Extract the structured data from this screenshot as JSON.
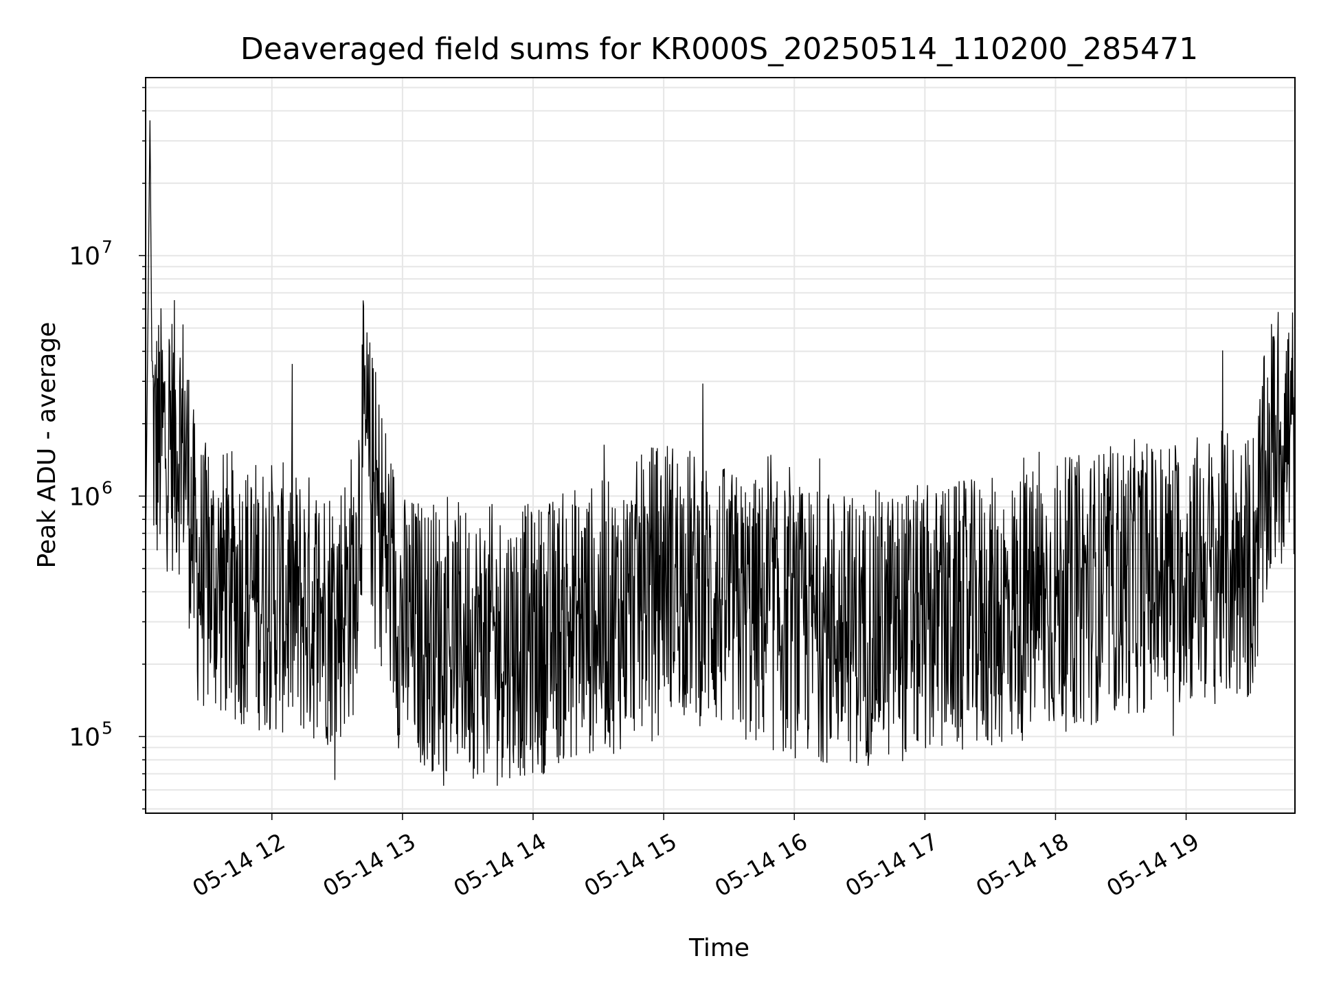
{
  "chart_data": {
    "type": "line",
    "title": "Deaveraged field sums for KR000S_20250514_110200_285471",
    "xlabel": "Time",
    "ylabel": "Peak ADU - average",
    "yscale": "log",
    "ylim": [
      48000,
      55000000
    ],
    "xlim": [
      "2025-05-14 11:02",
      "2025-05-14 19:50"
    ],
    "grid": true,
    "line_color": "#000000",
    "x_ticks": [
      "05-14 12",
      "05-14 13",
      "05-14 14",
      "05-14 15",
      "05-14 16",
      "05-14 17",
      "05-14 18",
      "05-14 19"
    ],
    "y_ticks": [
      {
        "base": "10",
        "exp": "5",
        "value": 100000
      },
      {
        "base": "10",
        "exp": "6",
        "value": 1000000
      },
      {
        "base": "10",
        "exp": "7",
        "value": 10000000
      }
    ],
    "series": [
      {
        "x": [
          "2025-05-14 11:02",
          "2025-05-14 11:04",
          "2025-05-14 11:05",
          "2025-05-14 11:06",
          "2025-05-14 11:08",
          "2025-05-14 11:12",
          "2025-05-14 11:20",
          "2025-05-14 11:25",
          "2025-05-14 11:30",
          "2025-05-14 11:40",
          "2025-05-14 11:50",
          "2025-05-14 12:00",
          "2025-05-14 12:15",
          "2025-05-14 12:30",
          "2025-05-14 12:38",
          "2025-05-14 12:42",
          "2025-05-14 12:48",
          "2025-05-14 13:00",
          "2025-05-14 13:30",
          "2025-05-14 14:00",
          "2025-05-14 14:20",
          "2025-05-14 14:40",
          "2025-05-14 15:00",
          "2025-05-14 15:30",
          "2025-05-14 16:00",
          "2025-05-14 16:30",
          "2025-05-14 17:00",
          "2025-05-14 17:30",
          "2025-05-14 18:00",
          "2025-05-14 18:30",
          "2025-05-14 19:00",
          "2025-05-14 19:30",
          "2025-05-14 19:40",
          "2025-05-14 19:50"
        ],
        "y": [
          600000,
          38000000,
          2500000,
          1600000,
          1700000,
          1800000,
          1700000,
          500000,
          450000,
          420000,
          400000,
          380000,
          350000,
          330000,
          450000,
          1800000,
          900000,
          280000,
          250000,
          250000,
          300000,
          320000,
          500000,
          350000,
          300000,
          280000,
          300000,
          320000,
          380000,
          450000,
          500000,
          500000,
          1700000,
          1900000
        ]
      }
    ]
  }
}
